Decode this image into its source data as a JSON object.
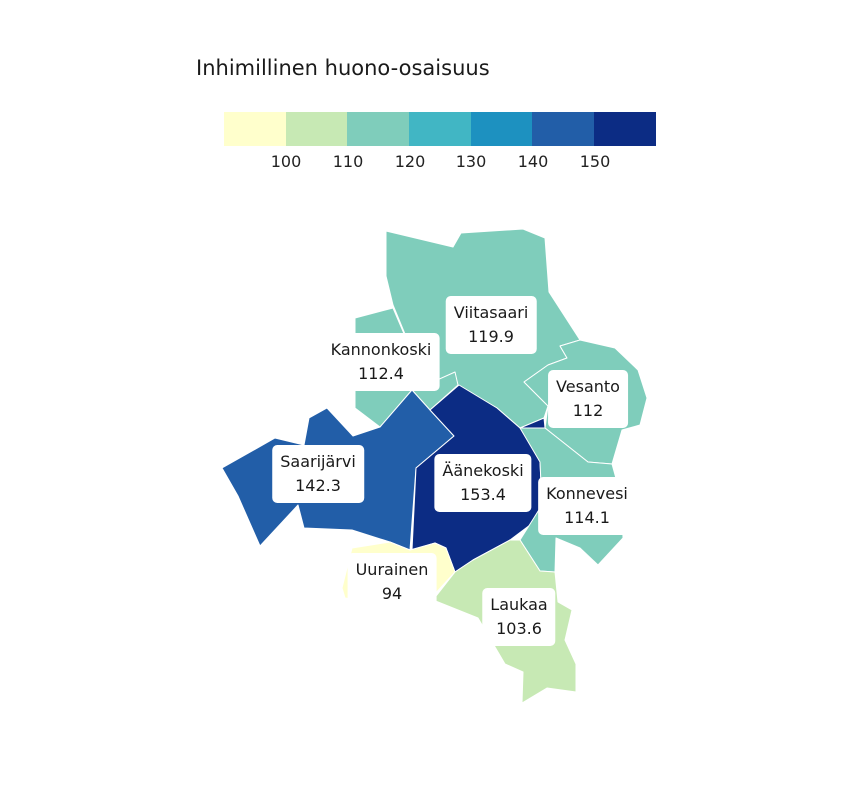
{
  "legend": {
    "title": "Inhimillinen huono-osaisuus",
    "colors": [
      "#ffffcc",
      "#c7e9b4",
      "#7fcdbb",
      "#41b6c4",
      "#1d91c0",
      "#225ea8",
      "#0c2c84"
    ],
    "ticks": [
      "100",
      "110",
      "120",
      "130",
      "140",
      "150"
    ]
  },
  "regions": [
    {
      "name": "Viitasaari",
      "value": "119.9",
      "color": "#7fcdbb"
    },
    {
      "name": "Kannonkoski",
      "value": "112.4",
      "color": "#7fcdbb"
    },
    {
      "name": "Vesanto",
      "value": "112",
      "color": "#7fcdbb"
    },
    {
      "name": "Saarijärvi",
      "value": "142.3",
      "color": "#225ea8"
    },
    {
      "name": "Äänekoski",
      "value": "153.4",
      "color": "#0c2c84"
    },
    {
      "name": "Konnevesi",
      "value": "114.1",
      "color": "#7fcdbb"
    },
    {
      "name": "Uurainen",
      "value": "94",
      "color": "#ffffcc"
    },
    {
      "name": "Laukaa",
      "value": "103.6",
      "color": "#c7e9b4"
    }
  ]
}
